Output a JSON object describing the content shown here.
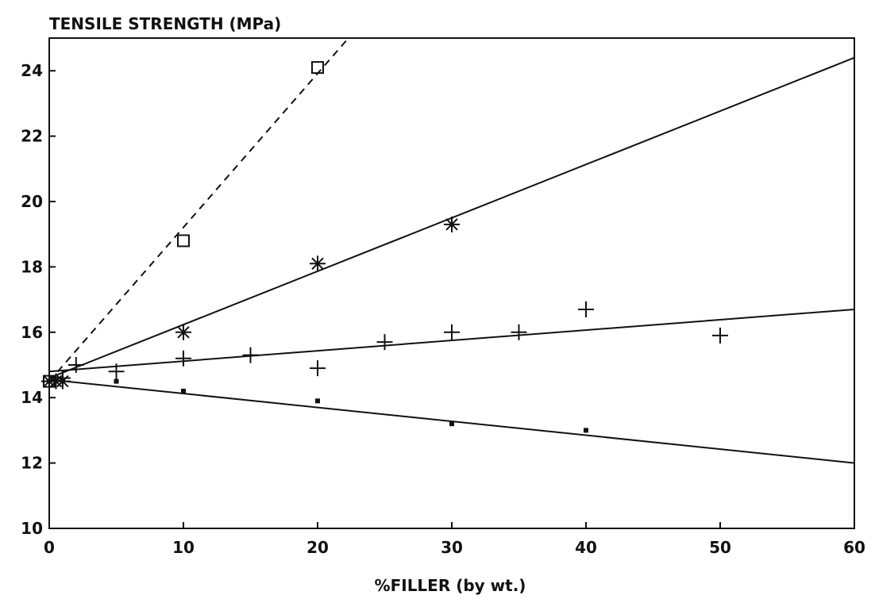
{
  "chart_data": {
    "type": "scatter",
    "title": "",
    "ylabel": "TENSILE STRENGTH (MPa)",
    "xlabel": "%FILLER (by wt.)",
    "xlim": [
      0,
      60
    ],
    "ylim": [
      10,
      25
    ],
    "xticks": [
      0,
      10,
      20,
      30,
      40,
      50,
      60
    ],
    "yticks": [
      10,
      12,
      14,
      16,
      18,
      20,
      22,
      24
    ],
    "grid": false,
    "series": [
      {
        "marker": "square",
        "points": [
          [
            0,
            14.5
          ],
          [
            10,
            18.8
          ],
          [
            20,
            24.1
          ]
        ],
        "fit": {
          "x": [
            0,
            22.3
          ],
          "y": [
            14.5,
            25
          ],
          "style": "dashed"
        }
      },
      {
        "marker": "asterisk",
        "points": [
          [
            0,
            14.5
          ],
          [
            0.5,
            14.5
          ],
          [
            1,
            14.5
          ],
          [
            10,
            16.0
          ],
          [
            20,
            18.1
          ],
          [
            30,
            19.3
          ]
        ],
        "fit": {
          "x": [
            0,
            60
          ],
          "y": [
            14.6,
            24.4
          ],
          "style": "solid"
        }
      },
      {
        "marker": "plus",
        "points": [
          [
            0,
            14.5
          ],
          [
            1,
            14.6
          ],
          [
            2,
            15.0
          ],
          [
            5,
            14.8
          ],
          [
            10,
            15.2
          ],
          [
            15,
            15.3
          ],
          [
            20,
            14.9
          ],
          [
            25,
            15.7
          ],
          [
            30,
            16.0
          ],
          [
            35,
            16.0
          ],
          [
            40,
            16.7
          ],
          [
            50,
            15.9
          ]
        ],
        "fit": {
          "x": [
            0,
            60
          ],
          "y": [
            14.8,
            16.7
          ],
          "style": "solid"
        }
      },
      {
        "marker": "dot",
        "points": [
          [
            0,
            14.5
          ],
          [
            1,
            14.5
          ],
          [
            5,
            14.5
          ],
          [
            10,
            14.2
          ],
          [
            20,
            13.9
          ],
          [
            30,
            13.2
          ],
          [
            40,
            13.0
          ]
        ],
        "fit": {
          "x": [
            0,
            60
          ],
          "y": [
            14.55,
            12.0
          ],
          "style": "solid"
        }
      }
    ]
  }
}
